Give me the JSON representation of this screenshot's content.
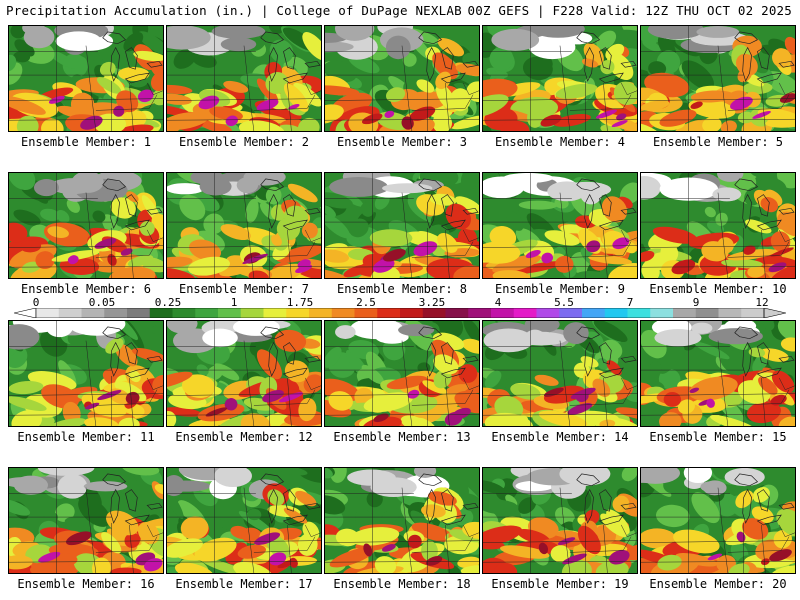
{
  "header": {
    "left": "Precipitation Accumulation (in.) | College of DuPage NEXLAB",
    "right": "00Z GEFS | F228 Valid: 12Z THU OCT 02 2025"
  },
  "members": [
    {
      "label": "Ensemble Member: 1"
    },
    {
      "label": "Ensemble Member: 2"
    },
    {
      "label": "Ensemble Member: 3"
    },
    {
      "label": "Ensemble Member: 4"
    },
    {
      "label": "Ensemble Member: 5"
    },
    {
      "label": "Ensemble Member: 6"
    },
    {
      "label": "Ensemble Member: 7"
    },
    {
      "label": "Ensemble Member: 8"
    },
    {
      "label": "Ensemble Member: 9"
    },
    {
      "label": "Ensemble Member: 10"
    },
    {
      "label": "Ensemble Member: 11"
    },
    {
      "label": "Ensemble Member: 12"
    },
    {
      "label": "Ensemble Member: 13"
    },
    {
      "label": "Ensemble Member: 14"
    },
    {
      "label": "Ensemble Member: 15"
    },
    {
      "label": "Ensemble Member: 16"
    },
    {
      "label": "Ensemble Member: 17"
    },
    {
      "label": "Ensemble Member: 18"
    },
    {
      "label": "Ensemble Member: 19"
    },
    {
      "label": "Ensemble Member: 20"
    }
  ],
  "colorbar": {
    "labels": [
      "0",
      "0.05",
      "0.25",
      "1",
      "1.75",
      "2.5",
      "3.25",
      "4",
      "5.5",
      "7",
      "9",
      "12"
    ],
    "colors": [
      "#e8e8e8",
      "#cfcfcf",
      "#b4b4b4",
      "#969696",
      "#7c7c7c",
      "#1e6e1e",
      "#2e8b2e",
      "#3fa53f",
      "#62c04a",
      "#a6d63c",
      "#e6ef3c",
      "#f6d629",
      "#f4b425",
      "#f08a22",
      "#ea5f1c",
      "#dc2d18",
      "#c21a1a",
      "#961028",
      "#86104a",
      "#a0107a",
      "#c212a8",
      "#e41ac8",
      "#b04ae8",
      "#7c6cf0",
      "#44a6f6",
      "#22c8f0",
      "#3ce0e0",
      "#8ce0e0",
      "#a8a8a8",
      "#909090",
      "#b8b8b8",
      "#cccccc"
    ]
  }
}
